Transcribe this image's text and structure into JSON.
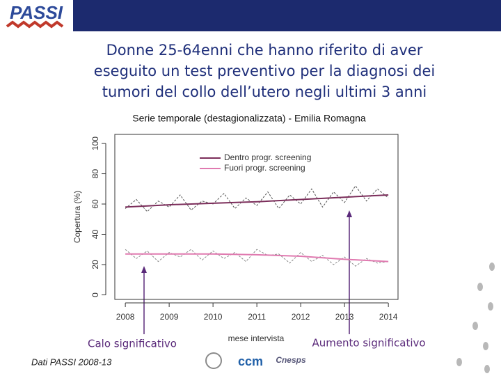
{
  "header": {
    "logo": "PASSI"
  },
  "chart_data": {
    "type": "line",
    "title": "Donne 25-64enni che hanno riferito di aver eseguito un test preventivo per la diagnosi dei tumori del collo dell’utero negli ultimi 3 anni",
    "title_lines": [
      "Donne 25-64enni che hanno riferito di aver",
      "eseguito un test preventivo per la diagnosi dei",
      "tumori del collo dell’utero negli ultimi 3 anni"
    ],
    "subtitle": "Serie temporale (destagionalizzata) - Emilia Romagna",
    "y_label": "Copertura (%)",
    "x_label": "mese intervista",
    "xlim": [
      2007.76,
      2014.22
    ],
    "xticks": [
      2008,
      2009,
      2010,
      2011,
      2012,
      2013,
      2014
    ],
    "ylim": [
      -3,
      106
    ],
    "yticks": [
      0,
      20,
      40,
      60,
      80,
      100
    ],
    "x": [
      2008,
      2009,
      2010,
      2011,
      2012,
      2013,
      2014
    ],
    "detail_x": [
      2008,
      2008.25,
      2008.5,
      2008.75,
      2009,
      2009.25,
      2009.5,
      2009.75,
      2010,
      2010.25,
      2010.5,
      2010.75,
      2011,
      2011.25,
      2011.5,
      2011.75,
      2012,
      2012.25,
      2012.5,
      2012.75,
      2013,
      2013.25,
      2013.5,
      2013.75,
      2014
    ],
    "legend": "top-left",
    "series": [
      {
        "name": "Dentro progr. screening",
        "color": "#7b2d5a",
        "detail_color": "#555555",
        "values": [
          58,
          59.5,
          60.5,
          61.5,
          63,
          64.5,
          66
        ],
        "detail": [
          57,
          63,
          55,
          62,
          58,
          66,
          56,
          62,
          60,
          67,
          57,
          64,
          59,
          68,
          57,
          66,
          60,
          70,
          58,
          68,
          61,
          72,
          62,
          70,
          64
        ]
      },
      {
        "name": "Fuori progr. screening",
        "color": "#e07ab0",
        "detail_color": "#8a8a8a",
        "values": [
          27,
          27,
          27,
          26.5,
          25.5,
          23.5,
          22
        ],
        "detail": [
          30,
          24,
          29,
          22,
          28,
          25,
          30,
          23,
          29,
          24,
          28,
          22,
          30,
          26,
          27,
          21,
          28,
          22,
          26,
          20,
          25,
          19,
          24,
          21,
          22
        ]
      }
    ],
    "annotations": [
      "Calo significativo",
      "Aumento significativo"
    ]
  },
  "footer": {
    "source": "Dati PASSI 2008-13",
    "logos": [
      "ccm",
      "Cnesps"
    ]
  }
}
